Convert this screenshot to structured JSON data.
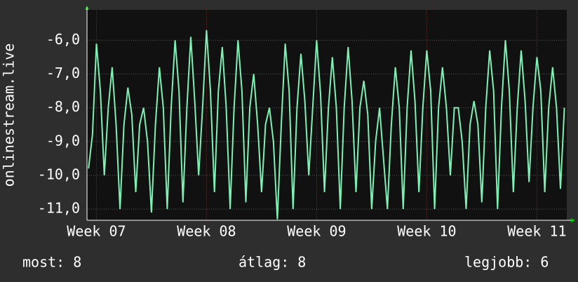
{
  "chart_data": {
    "type": "line",
    "y_label": "onlinestream.live",
    "x": [
      -0.5,
      -0.25,
      0,
      0.25,
      0.5,
      0.75,
      1,
      1.25,
      1.5,
      1.75,
      2,
      2.25,
      2.5,
      2.75,
      3,
      3.25,
      3.5,
      3.75,
      4,
      4.25,
      4.5,
      4.75,
      5,
      5.25,
      5.5,
      5.75,
      6,
      6.25,
      6.5,
      6.75,
      7,
      7.25,
      7.5,
      7.75,
      8,
      8.25,
      8.5,
      8.75,
      9,
      9.25,
      9.5,
      9.75,
      10,
      10.25,
      10.5,
      10.75,
      11,
      11.25,
      11.5,
      11.75,
      12,
      12.25,
      12.5,
      12.75,
      13,
      13.25,
      13.5,
      13.75,
      14,
      14.25,
      14.5,
      14.75,
      15,
      15.25,
      15.5,
      15.75,
      16,
      16.25,
      16.5,
      16.75,
      17,
      17.25,
      17.5,
      17.75,
      18,
      18.25,
      18.5,
      18.75,
      19,
      19.25,
      19.5,
      19.75,
      20,
      20.25,
      20.5,
      20.75,
      21,
      21.25,
      21.5,
      21.75,
      22,
      22.25,
      22.5,
      22.75,
      23,
      23.25,
      23.5,
      23.75,
      24,
      24.25,
      24.5,
      24.75,
      25,
      25.25,
      25.5,
      25.75,
      26,
      26.25,
      26.5,
      26.75,
      27,
      27.25,
      27.5,
      27.75,
      28,
      28.25,
      28.5,
      28.75,
      29,
      29.25,
      29.5,
      29.75
    ],
    "series": [
      {
        "name": "onlinestream.live",
        "color": "#7ff0b4",
        "values": [
          -9.8,
          -8.8,
          -6.1,
          -7.5,
          -10.0,
          -8.0,
          -6.8,
          -8.5,
          -11.0,
          -8.5,
          -7.4,
          -8.2,
          -10.5,
          -8.5,
          -8.0,
          -9.0,
          -11.1,
          -8.5,
          -6.8,
          -8.0,
          -11.0,
          -8.0,
          -6.0,
          -7.5,
          -10.8,
          -8.0,
          -5.9,
          -7.8,
          -10.0,
          -8.0,
          -5.7,
          -7.5,
          -10.5,
          -7.5,
          -6.2,
          -8.0,
          -11.0,
          -8.0,
          -6.0,
          -7.5,
          -10.8,
          -8.0,
          -7.0,
          -8.5,
          -10.5,
          -8.5,
          -8.0,
          -9.0,
          -11.3,
          -8.5,
          -6.1,
          -7.5,
          -11.0,
          -8.0,
          -6.4,
          -7.8,
          -10.0,
          -8.0,
          -6.0,
          -7.6,
          -10.5,
          -8.0,
          -6.5,
          -8.0,
          -11.0,
          -8.0,
          -6.2,
          -7.8,
          -10.5,
          -8.0,
          -7.2,
          -8.2,
          -11.0,
          -9.0,
          -8.0,
          -9.5,
          -11.0,
          -8.5,
          -6.8,
          -8.0,
          -11.0,
          -8.0,
          -6.3,
          -7.8,
          -10.5,
          -8.0,
          -6.3,
          -7.5,
          -11.0,
          -8.0,
          -6.8,
          -8.0,
          -10.0,
          -8.0,
          -8.0,
          -9.0,
          -11.0,
          -8.5,
          -7.8,
          -8.5,
          -10.8,
          -8.0,
          -6.3,
          -7.5,
          -11.0,
          -8.0,
          -6.0,
          -7.5,
          -10.5,
          -8.0,
          -6.3,
          -7.8,
          -10.2,
          -8.0,
          -6.5,
          -7.5,
          -10.5,
          -8.0,
          -6.8,
          -8.0,
          -10.4,
          -8.0
        ]
      }
    ],
    "xlim": [
      -0.6,
      29.9
    ],
    "xticks": [
      {
        "value": 0,
        "label": "Week 07"
      },
      {
        "value": 7,
        "label": "Week 08"
      },
      {
        "value": 14,
        "label": "Week 09"
      },
      {
        "value": 21,
        "label": "Week 10"
      },
      {
        "value": 28,
        "label": "Week 11"
      }
    ],
    "ylim": [
      -11.33,
      -5.1
    ],
    "yticks": [
      {
        "value": -11,
        "label": "-11,0"
      },
      {
        "value": -10,
        "label": "-10,0"
      },
      {
        "value": -9,
        "label": "-9,0"
      },
      {
        "value": -8,
        "label": "-8,0"
      },
      {
        "value": -7,
        "label": "-7,0"
      },
      {
        "value": -6,
        "label": "-6,0"
      }
    ],
    "grid": true,
    "stats": [
      "most: 8",
      "átlag: 8",
      "legjobb: 6"
    ]
  }
}
